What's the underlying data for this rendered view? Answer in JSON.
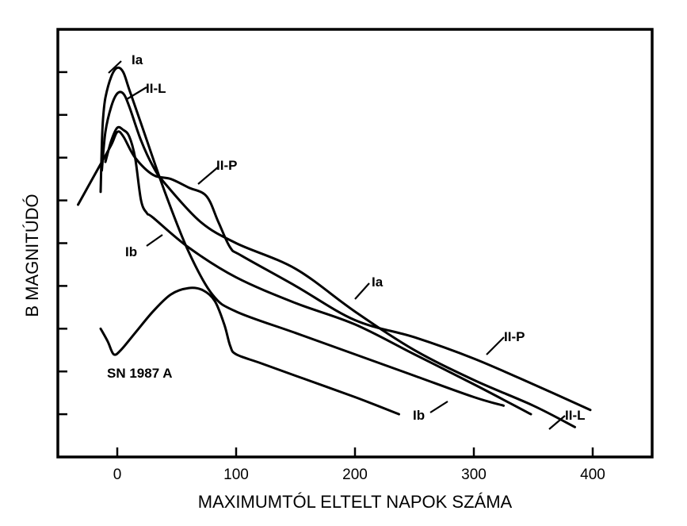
{
  "chart_data": {
    "type": "line",
    "title": "",
    "xlabel": "MAXIMUMTÓL ELTELT NAPOK SZÁMA",
    "ylabel": "B MAGNITÚDÓ",
    "xlim": [
      -50,
      450
    ],
    "ylim": [
      10,
      0
    ],
    "x_ticks": [
      0,
      100,
      200,
      300,
      400
    ],
    "x_tick_labels": [
      "0",
      "100",
      "200",
      "300",
      "400"
    ],
    "y_ticks": [
      1,
      2,
      3,
      4,
      5,
      6,
      7,
      8,
      9
    ],
    "y_tick_labels": [],
    "series": [
      {
        "name": "Ia",
        "label": "Ia",
        "points": [
          [
            -14,
            3.8
          ],
          [
            -13,
            2.7
          ],
          [
            -12,
            2.1
          ],
          [
            -10,
            1.6
          ],
          [
            -5,
            1.1
          ],
          [
            0,
            0.9
          ],
          [
            5,
            1.0
          ],
          [
            10,
            1.4
          ],
          [
            20,
            2.2
          ],
          [
            40,
            3.8
          ],
          [
            60,
            5.2
          ],
          [
            80,
            6.2
          ],
          [
            100,
            6.6
          ],
          [
            150,
            7.1
          ],
          [
            200,
            7.6
          ],
          [
            250,
            8.1
          ],
          [
            300,
            8.6
          ],
          [
            325,
            8.8
          ]
        ]
      },
      {
        "name": "II-L",
        "label": "II-L",
        "points": [
          [
            -13,
            3.3
          ],
          [
            -10,
            2.4
          ],
          [
            -5,
            1.8
          ],
          [
            0,
            1.5
          ],
          [
            5,
            1.5
          ],
          [
            10,
            1.8
          ],
          [
            20,
            2.6
          ],
          [
            30,
            3.2
          ],
          [
            40,
            3.6
          ],
          [
            70,
            4.5
          ],
          [
            100,
            5.0
          ],
          [
            150,
            5.6
          ],
          [
            200,
            6.6
          ],
          [
            250,
            7.5
          ],
          [
            300,
            8.2
          ],
          [
            350,
            8.8
          ],
          [
            385,
            9.3
          ]
        ]
      },
      {
        "name": "II-P",
        "label": "II-P",
        "points": [
          [
            -33,
            4.1
          ],
          [
            -25,
            3.7
          ],
          [
            -15,
            3.2
          ],
          [
            -5,
            2.7
          ],
          [
            0,
            2.4
          ],
          [
            5,
            2.5
          ],
          [
            15,
            3.0
          ],
          [
            30,
            3.4
          ],
          [
            45,
            3.5
          ],
          [
            60,
            3.7
          ],
          [
            75,
            3.9
          ],
          [
            85,
            4.5
          ],
          [
            95,
            5.1
          ],
          [
            105,
            5.3
          ],
          [
            150,
            6.0
          ],
          [
            200,
            6.8
          ],
          [
            250,
            7.2
          ],
          [
            300,
            7.7
          ],
          [
            350,
            8.3
          ],
          [
            398,
            8.9
          ]
        ]
      },
      {
        "name": "Ib",
        "label": "Ib",
        "points": [
          [
            -10,
            3.1
          ],
          [
            -5,
            2.6
          ],
          [
            0,
            2.3
          ],
          [
            5,
            2.35
          ],
          [
            10,
            2.5
          ],
          [
            15,
            3.0
          ],
          [
            20,
            4.0
          ],
          [
            25,
            4.3
          ],
          [
            30,
            4.4
          ],
          [
            60,
            5.1
          ],
          [
            100,
            5.8
          ],
          [
            150,
            6.4
          ],
          [
            200,
            6.9
          ],
          [
            250,
            7.6
          ],
          [
            300,
            8.3
          ],
          [
            348,
            9.0
          ]
        ]
      },
      {
        "name": "SN 1987 A",
        "label": "SN 1987 A",
        "points": [
          [
            -14,
            7.0
          ],
          [
            -8,
            7.3
          ],
          [
            -3,
            7.6
          ],
          [
            3,
            7.5
          ],
          [
            15,
            7.1
          ],
          [
            30,
            6.6
          ],
          [
            45,
            6.2
          ],
          [
            60,
            6.05
          ],
          [
            72,
            6.1
          ],
          [
            82,
            6.35
          ],
          [
            90,
            6.9
          ],
          [
            95,
            7.4
          ],
          [
            100,
            7.6
          ],
          [
            120,
            7.8
          ],
          [
            150,
            8.1
          ],
          [
            200,
            8.6
          ],
          [
            237,
            9.0
          ]
        ]
      }
    ],
    "annotations": [
      {
        "text": "Ia",
        "series": "Ia"
      },
      {
        "text": "II-L",
        "series": "II-L"
      },
      {
        "text": "II-P",
        "series": "II-P"
      },
      {
        "text": "Ib",
        "series": "Ib"
      },
      {
        "text": "Ia",
        "series": "Ia"
      },
      {
        "text": "II-P",
        "series": "II-P"
      },
      {
        "text": "Ib",
        "series": "Ib"
      },
      {
        "text": "II-L",
        "series": "II-L"
      },
      {
        "text": "SN 1987 A",
        "series": "SN 1987 A"
      }
    ]
  }
}
